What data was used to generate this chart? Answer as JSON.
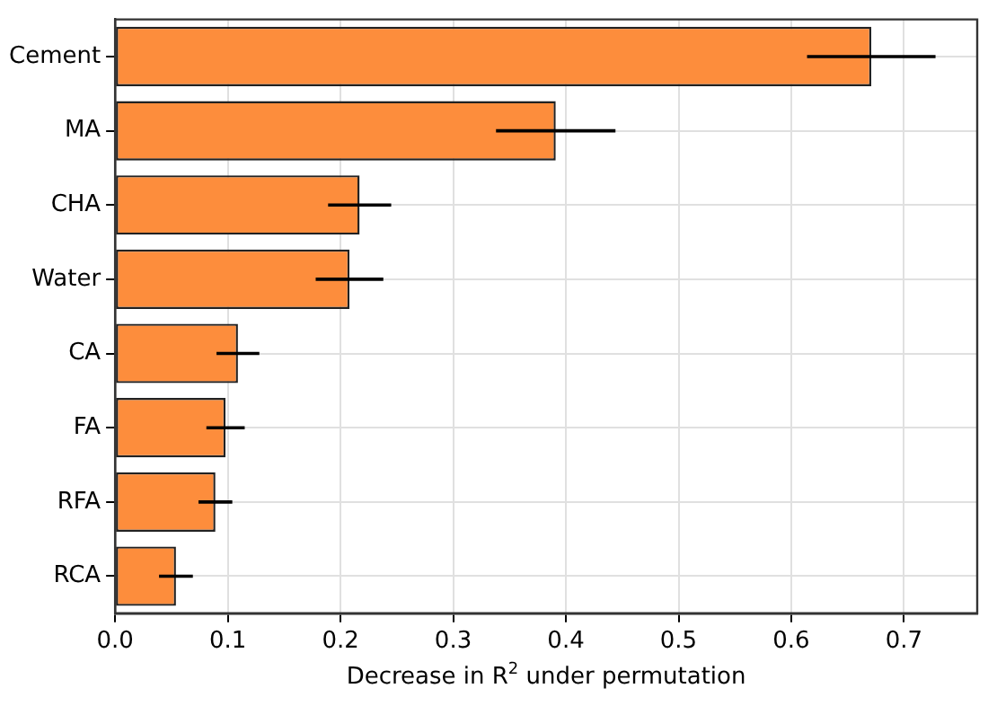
{
  "chart_data": {
    "type": "bar",
    "orientation": "horizontal",
    "xlabel": "Decrease in R$^{2}$ under permutation",
    "categories": [
      "Cement",
      "MA",
      "CHA",
      "Water",
      "CA",
      "FA",
      "RFA",
      "RCA"
    ],
    "values": [
      0.671,
      0.391,
      0.217,
      0.208,
      0.109,
      0.098,
      0.089,
      0.054
    ],
    "errors": [
      0.057,
      0.053,
      0.028,
      0.03,
      0.019,
      0.017,
      0.015,
      0.015
    ],
    "color": "#fd8d3c",
    "xlim": [
      0,
      0.765
    ],
    "xticks": [
      {
        "value": 0,
        "label": "0.0"
      },
      0.1,
      0.2,
      0.3,
      0.4,
      0.5,
      0.6,
      0.7
    ],
    "grid": true
  }
}
